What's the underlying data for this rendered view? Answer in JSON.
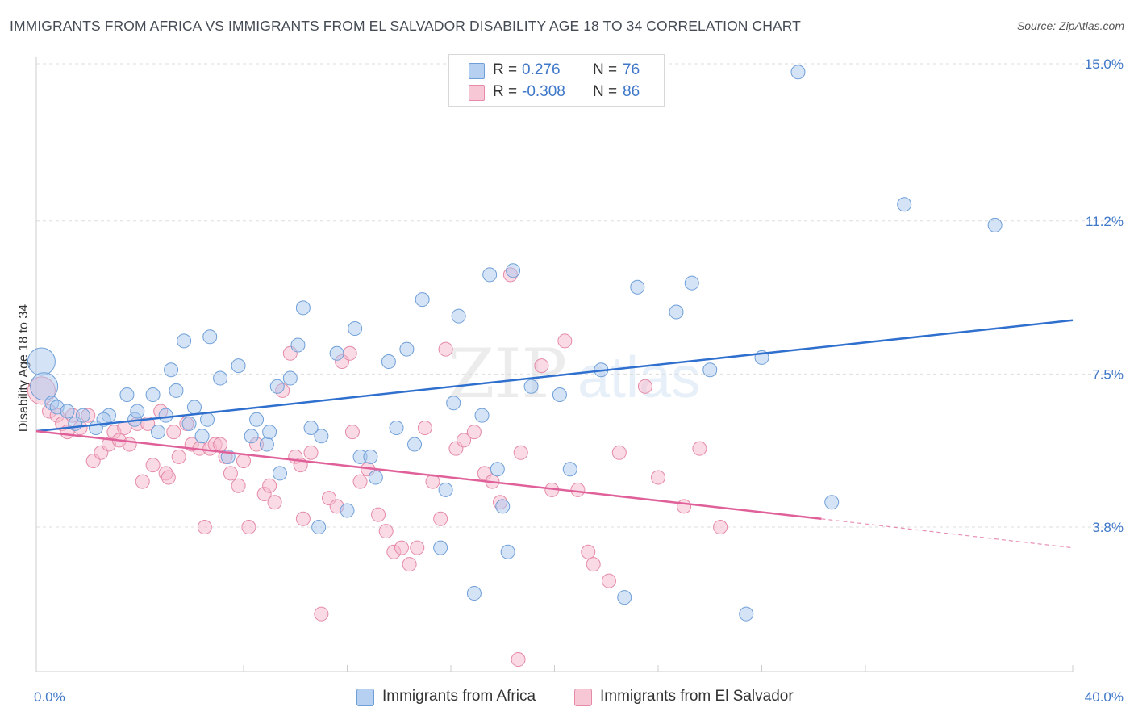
{
  "header": {
    "title": "IMMIGRANTS FROM AFRICA VS IMMIGRANTS FROM EL SALVADOR DISABILITY AGE 18 TO 34 CORRELATION CHART",
    "source": "Source: ZipAtlas.com"
  },
  "watermark": {
    "part1": "ZIP",
    "part2": "atlas"
  },
  "legend": {
    "r_label": "R =",
    "n_label": "N =",
    "rows": [
      {
        "r": "0.276",
        "n": "76"
      },
      {
        "r": "-0.308",
        "n": "86"
      }
    ]
  },
  "colors": {
    "africa_fill": "#a9c8ee",
    "africa_stroke": "#6f9fd8",
    "africa_line": "#2f6fce",
    "salvador_fill": "#f6b8cb",
    "salvador_stroke": "#e58aa7",
    "salvador_line": "#e0609a",
    "axis_text": "#3f78c8",
    "grid": "#dddddd"
  },
  "chart_data": {
    "type": "scatter",
    "title": "IMMIGRANTS FROM AFRICA VS IMMIGRANTS FROM EL SALVADOR DISABILITY AGE 18 TO 34 CORRELATION CHART",
    "xlabel": "",
    "ylabel": "Disability Age 18 to 34",
    "xlim": [
      0,
      40
    ],
    "ylim": [
      0,
      15.5
    ],
    "x_tick_labels": [
      "0.0%",
      "40.0%"
    ],
    "y_ticks": [
      3.8,
      7.5,
      11.2,
      15.0
    ],
    "y_tick_labels": [
      "3.8%",
      "7.5%",
      "11.2%",
      "15.0%"
    ],
    "grid": "horizontal dashed",
    "legend_placement": "top-center and bottom",
    "series": [
      {
        "name": "Immigrants from Africa",
        "r": 0.276,
        "n": 76,
        "trend": {
          "x": [
            0,
            40
          ],
          "y": [
            6.12,
            8.8
          ]
        },
        "points": [
          [
            0.2,
            7.8,
            2
          ],
          [
            0.3,
            7.2,
            2
          ],
          [
            0.6,
            6.8,
            1
          ],
          [
            0.8,
            6.7,
            1
          ],
          [
            1.2,
            6.6,
            1
          ],
          [
            1.5,
            6.3,
            1
          ],
          [
            1.8,
            6.5,
            1
          ],
          [
            2.3,
            6.2,
            1
          ],
          [
            2.8,
            6.5,
            1
          ],
          [
            3.5,
            7.0,
            1
          ],
          [
            3.8,
            6.4,
            1
          ],
          [
            3.9,
            6.6,
            1
          ],
          [
            4.5,
            7.0,
            1
          ],
          [
            4.7,
            6.1,
            1
          ],
          [
            5.0,
            6.5,
            1
          ],
          [
            5.2,
            7.6,
            1
          ],
          [
            5.4,
            7.1,
            1
          ],
          [
            5.7,
            8.3,
            1
          ],
          [
            5.9,
            6.3,
            1
          ],
          [
            6.1,
            6.7,
            1
          ],
          [
            6.4,
            6.0,
            1
          ],
          [
            6.6,
            6.4,
            1
          ],
          [
            6.7,
            8.4,
            1
          ],
          [
            7.1,
            7.4,
            1
          ],
          [
            7.4,
            5.5,
            1
          ],
          [
            7.8,
            7.7,
            1
          ],
          [
            8.5,
            6.4,
            1
          ],
          [
            8.3,
            6.0,
            1
          ],
          [
            8.9,
            5.8,
            1
          ],
          [
            9.3,
            7.2,
            1
          ],
          [
            9.4,
            5.1,
            1
          ],
          [
            9.8,
            7.4,
            1
          ],
          [
            10.1,
            8.2,
            1
          ],
          [
            10.3,
            9.1,
            1
          ],
          [
            10.6,
            6.2,
            1
          ],
          [
            10.9,
            3.8,
            1
          ],
          [
            11.0,
            6.0,
            1
          ],
          [
            11.6,
            8.0,
            1
          ],
          [
            12.0,
            4.2,
            1
          ],
          [
            12.3,
            8.6,
            1
          ],
          [
            12.5,
            5.5,
            1
          ],
          [
            12.9,
            5.5,
            1
          ],
          [
            13.1,
            5.0,
            1
          ],
          [
            13.6,
            7.8,
            1
          ],
          [
            13.9,
            6.2,
            1
          ],
          [
            14.3,
            8.1,
            1
          ],
          [
            14.6,
            5.8,
            1
          ],
          [
            14.9,
            9.3,
            1
          ],
          [
            15.6,
            3.3,
            1
          ],
          [
            15.8,
            4.7,
            1
          ],
          [
            16.1,
            6.8,
            1
          ],
          [
            16.3,
            8.9,
            1
          ],
          [
            16.9,
            2.2,
            1
          ],
          [
            17.2,
            6.5,
            1
          ],
          [
            17.5,
            9.9,
            1
          ],
          [
            17.8,
            5.2,
            1
          ],
          [
            18.2,
            3.2,
            1
          ],
          [
            18.4,
            10.0,
            1
          ],
          [
            18.0,
            4.3,
            1
          ],
          [
            20.6,
            5.2,
            1
          ],
          [
            20.2,
            7.0,
            1
          ],
          [
            21.8,
            7.6,
            1
          ],
          [
            22.7,
            2.1,
            1
          ],
          [
            23.2,
            9.6,
            1
          ],
          [
            24.7,
            9.0,
            1
          ],
          [
            25.3,
            9.7,
            1
          ],
          [
            26.0,
            7.6,
            1
          ],
          [
            27.4,
            1.7,
            1
          ],
          [
            28.0,
            7.9,
            1
          ],
          [
            33.5,
            11.6,
            1
          ],
          [
            37.0,
            11.1,
            1
          ],
          [
            29.4,
            14.8,
            1
          ],
          [
            30.7,
            4.4,
            1
          ],
          [
            19.1,
            7.2,
            1
          ],
          [
            9.0,
            6.1,
            1
          ],
          [
            2.6,
            6.4,
            1
          ]
        ]
      },
      {
        "name": "Immigrants from El Salvador",
        "r": -0.308,
        "n": 86,
        "trend_solid": {
          "x": [
            0,
            30.3
          ],
          "y": [
            6.12,
            4.0
          ]
        },
        "trend_dashed": {
          "x": [
            30.3,
            40
          ],
          "y": [
            4.0,
            3.3
          ]
        },
        "points": [
          [
            0.2,
            7.1,
            2
          ],
          [
            0.5,
            6.6,
            1
          ],
          [
            0.8,
            6.5,
            1
          ],
          [
            1.0,
            6.3,
            1
          ],
          [
            1.2,
            6.1,
            1
          ],
          [
            1.4,
            6.5,
            1
          ],
          [
            1.7,
            6.2,
            1
          ],
          [
            2.0,
            6.5,
            1
          ],
          [
            2.2,
            5.4,
            1
          ],
          [
            2.5,
            5.6,
            1
          ],
          [
            2.8,
            5.8,
            1
          ],
          [
            3.0,
            6.1,
            1
          ],
          [
            3.2,
            5.9,
            1
          ],
          [
            3.4,
            6.2,
            1
          ],
          [
            3.6,
            5.8,
            1
          ],
          [
            3.9,
            6.3,
            1
          ],
          [
            4.1,
            4.9,
            1
          ],
          [
            4.3,
            6.3,
            1
          ],
          [
            4.5,
            5.3,
            1
          ],
          [
            4.8,
            6.6,
            1
          ],
          [
            5.0,
            5.1,
            1
          ],
          [
            5.1,
            5.0,
            1
          ],
          [
            5.3,
            6.1,
            1
          ],
          [
            5.5,
            5.5,
            1
          ],
          [
            5.8,
            6.3,
            1
          ],
          [
            6.0,
            5.8,
            1
          ],
          [
            6.3,
            5.7,
            1
          ],
          [
            6.5,
            3.8,
            1
          ],
          [
            6.7,
            5.7,
            1
          ],
          [
            6.9,
            5.8,
            1
          ],
          [
            7.1,
            5.8,
            1
          ],
          [
            7.3,
            5.5,
            1
          ],
          [
            7.5,
            5.1,
            1
          ],
          [
            7.8,
            4.8,
            1
          ],
          [
            8.0,
            5.4,
            1
          ],
          [
            8.2,
            3.8,
            1
          ],
          [
            8.5,
            5.8,
            1
          ],
          [
            8.8,
            4.6,
            1
          ],
          [
            9.0,
            4.8,
            1
          ],
          [
            9.2,
            4.4,
            1
          ],
          [
            9.5,
            7.1,
            1
          ],
          [
            9.8,
            8.0,
            1
          ],
          [
            10.0,
            5.5,
            1
          ],
          [
            10.3,
            4.0,
            1
          ],
          [
            10.6,
            5.6,
            1
          ],
          [
            11.0,
            1.7,
            1
          ],
          [
            11.3,
            4.5,
            1
          ],
          [
            11.6,
            4.3,
            1
          ],
          [
            11.8,
            7.8,
            1
          ],
          [
            12.2,
            6.1,
            1
          ],
          [
            12.5,
            4.9,
            1
          ],
          [
            12.8,
            5.2,
            1
          ],
          [
            13.2,
            4.1,
            1
          ],
          [
            13.5,
            3.7,
            1
          ],
          [
            13.8,
            3.2,
            1
          ],
          [
            14.1,
            3.3,
            1
          ],
          [
            14.4,
            2.9,
            1
          ],
          [
            14.7,
            3.3,
            1
          ],
          [
            15.0,
            6.2,
            1
          ],
          [
            15.3,
            4.9,
            1
          ],
          [
            15.6,
            4.0,
            1
          ],
          [
            15.8,
            8.1,
            1
          ],
          [
            16.2,
            5.7,
            1
          ],
          [
            16.5,
            5.9,
            1
          ],
          [
            16.9,
            6.1,
            1
          ],
          [
            17.3,
            5.1,
            1
          ],
          [
            17.6,
            4.9,
            1
          ],
          [
            17.9,
            4.4,
            1
          ],
          [
            18.3,
            9.9,
            1
          ],
          [
            18.7,
            5.6,
            1
          ],
          [
            18.6,
            0.6,
            1
          ],
          [
            19.5,
            7.7,
            1
          ],
          [
            19.9,
            4.7,
            1
          ],
          [
            20.4,
            8.3,
            1
          ],
          [
            20.9,
            4.7,
            1
          ],
          [
            21.3,
            3.2,
            1
          ],
          [
            21.5,
            2.9,
            1
          ],
          [
            22.1,
            2.5,
            1
          ],
          [
            22.5,
            5.6,
            1
          ],
          [
            23.5,
            7.2,
            1
          ],
          [
            24.0,
            5.0,
            1
          ],
          [
            25.0,
            4.3,
            1
          ],
          [
            25.6,
            5.7,
            1
          ],
          [
            26.4,
            3.8,
            1
          ],
          [
            12.1,
            8.0,
            1
          ],
          [
            10.2,
            5.3,
            1
          ]
        ]
      }
    ]
  },
  "bottom_legend": [
    "Immigrants from Africa",
    "Immigrants from El Salvador"
  ]
}
